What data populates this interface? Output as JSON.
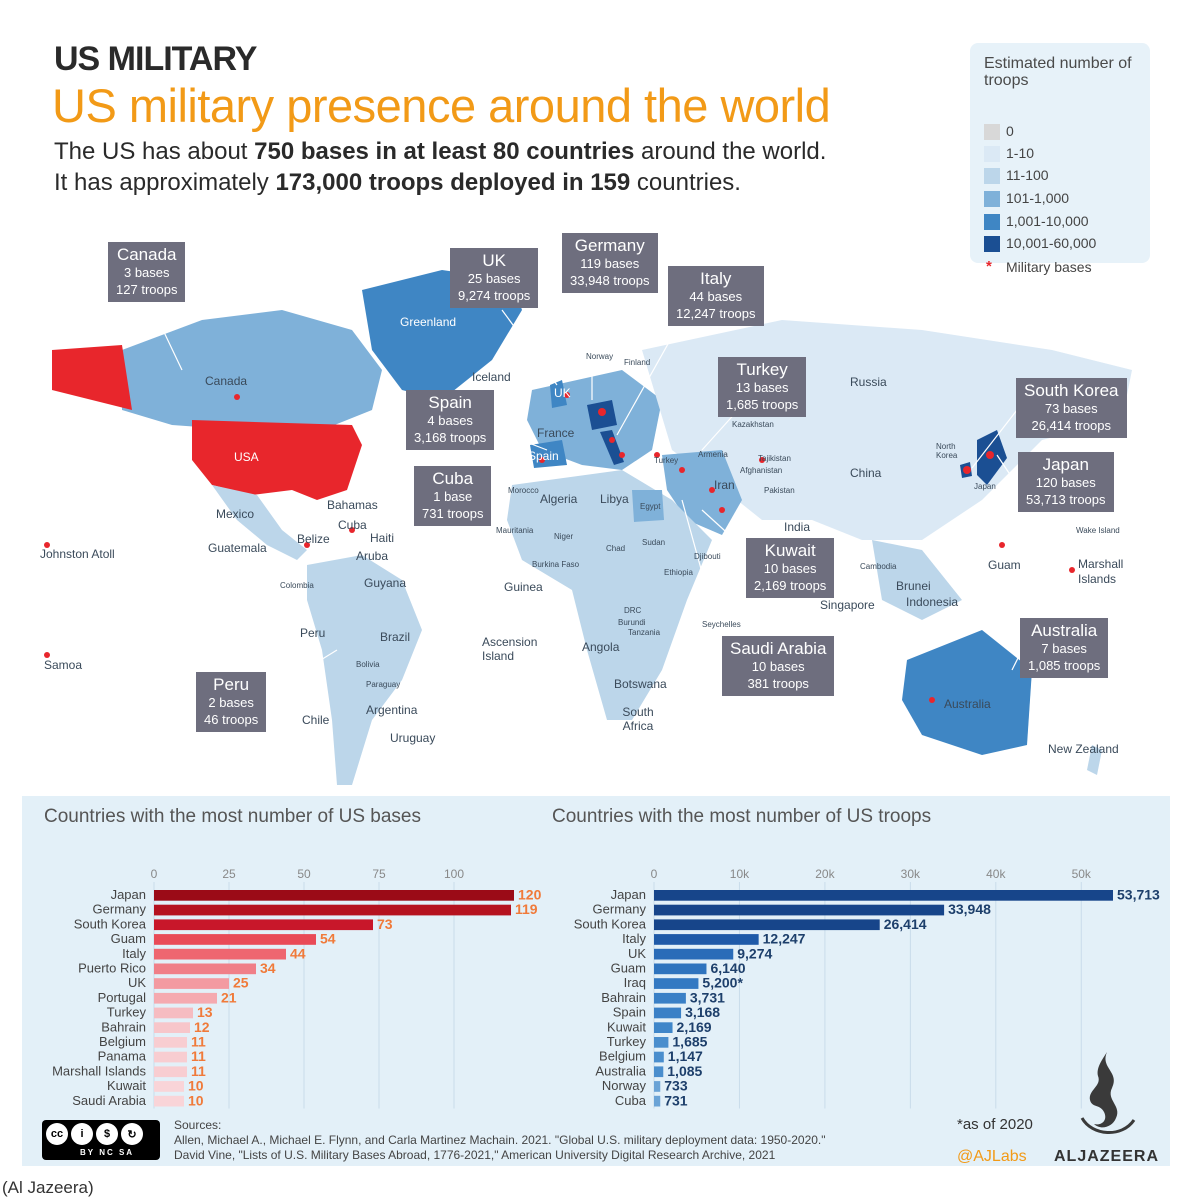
{
  "header": {
    "kicker": "US MILITARY",
    "title": "US military presence around the world",
    "line1": {
      "pre": "The US has about ",
      "bold": "750 bases in at least 80 countries",
      "post": " around the world."
    },
    "line2": {
      "pre": "It has approximately ",
      "bold": "173,000 troops deployed in 159",
      "post": " countries."
    }
  },
  "legend": {
    "title": "Estimated number of troops",
    "items": [
      {
        "label": "0",
        "color": "#d8d8d8"
      },
      {
        "label": "1-10",
        "color": "#dbe9f5"
      },
      {
        "label": "11-100",
        "color": "#bcd6ea"
      },
      {
        "label": "101-1,000",
        "color": "#7fb1d9"
      },
      {
        "label": "1,001-10,000",
        "color": "#3f86c4"
      },
      {
        "label": "10,001-60,000",
        "color": "#1b4f93"
      }
    ],
    "bases_label": "Military bases",
    "bases_color": "#e8262c"
  },
  "callouts": [
    {
      "name": "Canada",
      "bases": "3",
      "troops": "127"
    },
    {
      "name": "UK",
      "bases": "25",
      "troops": "9,274"
    },
    {
      "name": "Germany",
      "bases": "119",
      "troops": "33,948"
    },
    {
      "name": "Italy",
      "bases": "44",
      "troops": "12,247"
    },
    {
      "name": "Turkey",
      "bases": "13",
      "troops": "1,685"
    },
    {
      "name": "South Korea",
      "bases": "73",
      "troops": "26,414"
    },
    {
      "name": "Japan",
      "bases": "120",
      "troops": "53,713"
    },
    {
      "name": "Spain",
      "bases": "4",
      "troops": "3,168"
    },
    {
      "name": "Cuba",
      "bases": "1",
      "troops": "731",
      "base_word": "base"
    },
    {
      "name": "Kuwait",
      "bases": "10",
      "troops": "2,169"
    },
    {
      "name": "Saudi Arabia",
      "bases": "10",
      "troops": "381"
    },
    {
      "name": "Australia",
      "bases": "7",
      "troops": "1,085"
    },
    {
      "name": "Peru",
      "bases": "2",
      "troops": "46"
    }
  ],
  "callout_words": {
    "bases": "bases",
    "troops": "troops"
  },
  "map_labels": [
    "Greenland",
    "Canada",
    "Iceland",
    "USA",
    "Mexico",
    "Bahamas",
    "Cuba",
    "Haiti",
    "Belize",
    "Guatemala",
    "Aruba",
    "Colombia",
    "Guyana",
    "Johnston Atoll",
    "Samoa",
    "Peru",
    "Brazil",
    "Bolivia",
    "Paraguay",
    "Argentina",
    "Chile",
    "Uruguay",
    "Ascension Island",
    "UK",
    "France",
    "Spain",
    "Norway",
    "Finland",
    "Russia",
    "Kazakhstan",
    "Armenia",
    "Tajikistan",
    "Afghanistan",
    "Pakistan",
    "Iran",
    "China",
    "India",
    "Turkey",
    "Morocco",
    "Algeria",
    "Libya",
    "Egypt",
    "Mauritania",
    "Niger",
    "Chad",
    "Sudan",
    "Djibouti",
    "Burkina Faso",
    "Guinea",
    "Ethiopia",
    "DRC",
    "Burundi",
    "Tanzania",
    "Seychelles",
    "Angola",
    "Botswana",
    "South Africa",
    "Cambodia",
    "Singapore",
    "Brunei",
    "Indonesia",
    "Guam",
    "Wake Island",
    "Marshall Islands",
    "Australia",
    "New Zealand",
    "North Korea",
    "Japan"
  ],
  "chart_data": [
    {
      "type": "bar",
      "orientation": "horizontal",
      "title": "Countries with the most number of US bases",
      "categories": [
        "Japan",
        "Germany",
        "South Korea",
        "Guam",
        "Italy",
        "Puerto Rico",
        "UK",
        "Portugal",
        "Turkey",
        "Bahrain",
        "Belgium",
        "Panama",
        "Marshall Islands",
        "Kuwait",
        "Saudi Arabia"
      ],
      "values": [
        120,
        119,
        73,
        54,
        44,
        34,
        25,
        21,
        13,
        12,
        11,
        11,
        11,
        10,
        10
      ],
      "value_labels": [
        "120",
        "119",
        "73",
        "54",
        "44",
        "34",
        "25",
        "21",
        "13",
        "12",
        "11",
        "11",
        "11",
        "10",
        "10"
      ],
      "xticks": [
        "0",
        "25",
        "50",
        "75",
        "100"
      ],
      "xtick_values": [
        0,
        25,
        50,
        75,
        100
      ],
      "xlim": [
        0,
        120
      ],
      "bar_colors": [
        "#9b0b17",
        "#b5121f",
        "#c8172a",
        "#e94a57",
        "#ee6670",
        "#f07f88",
        "#f39aa1",
        "#f5aab0",
        "#f6bcc1",
        "#f7c6ca",
        "#f8cdd1",
        "#f8cdd1",
        "#f8cdd1",
        "#f9d4d8",
        "#f9d4d8"
      ],
      "label_color": "#f07a3a"
    },
    {
      "type": "bar",
      "orientation": "horizontal",
      "title": "Countries with the most number of US troops",
      "categories": [
        "Japan",
        "Germany",
        "South Korea",
        "Italy",
        "UK",
        "Guam",
        "Iraq",
        "Bahrain",
        "Spain",
        "Kuwait",
        "Turkey",
        "Belgium",
        "Australia",
        "Norway",
        "Cuba"
      ],
      "values": [
        53713,
        33948,
        26414,
        12247,
        9274,
        6140,
        5200,
        3731,
        3168,
        2169,
        1685,
        1147,
        1085,
        733,
        731
      ],
      "value_labels": [
        "53,713",
        "33,948",
        "26,414",
        "12,247",
        "9,274",
        "6,140",
        "5,200*",
        "3,731",
        "3,168",
        "2,169",
        "1,685",
        "1,147",
        "1,085",
        "733",
        "731"
      ],
      "xticks": [
        "0",
        "10k",
        "20k",
        "30k",
        "40k",
        "50k"
      ],
      "xtick_values": [
        0,
        10000,
        20000,
        30000,
        40000,
        50000
      ],
      "xlim": [
        0,
        55000
      ],
      "bar_colors": [
        "#17458a",
        "#17458a",
        "#17458a",
        "#1f5aa8",
        "#2a6cb8",
        "#2f74be",
        "#3379c2",
        "#3a80c6",
        "#3a80c6",
        "#3f86c9",
        "#4a8ecd",
        "#4a8ecd",
        "#4a8ecd",
        "#6aa3d6",
        "#6aa3d6"
      ],
      "label_color": "#1d3f6b"
    }
  ],
  "footer": {
    "sources_label": "Sources:",
    "source1": "Allen, Michael A., Michael E. Flynn, and Carla Martinez Machain. 2021. \"Global U.S. military deployment data: 1950-2020.\"",
    "source2": "David Vine, \"Lists of U.S. Military Bases Abroad, 1776-2021,\" American University Digital Research Archive, 2021",
    "note": "*as of 2020",
    "handle": "@AJLabs",
    "brand": "ALJAZEERA",
    "cc_labels": "BY NC SA"
  },
  "caption": "(Al Jazeera)"
}
